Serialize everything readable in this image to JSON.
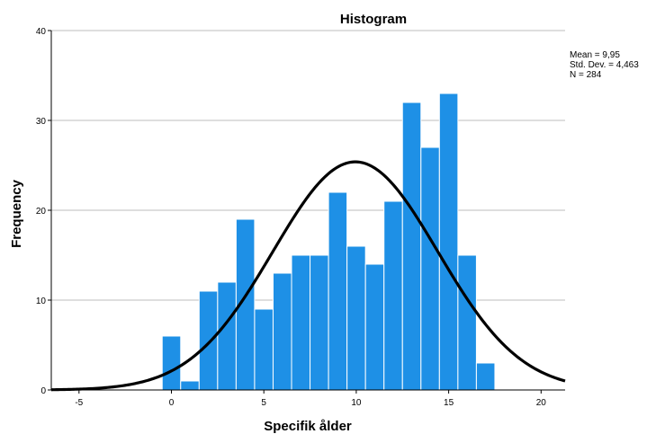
{
  "chart_data": {
    "type": "bar",
    "title": "Histogram",
    "xlabel": "Specifik ålder",
    "ylabel": "Frequency",
    "xlim": [
      -6.5,
      21.3
    ],
    "ylim": [
      0,
      40
    ],
    "x_ticks": [
      "-5",
      "0",
      "5",
      "10",
      "15",
      "20"
    ],
    "y_ticks": [
      "0",
      "10",
      "20",
      "30",
      "40"
    ],
    "grid": "horizontal",
    "bin_width": 1,
    "bins": [
      {
        "x": 0,
        "value": 6
      },
      {
        "x": 1,
        "value": 1
      },
      {
        "x": 2,
        "value": 11
      },
      {
        "x": 3,
        "value": 12
      },
      {
        "x": 4,
        "value": 19
      },
      {
        "x": 5,
        "value": 9
      },
      {
        "x": 6,
        "value": 13
      },
      {
        "x": 7,
        "value": 15
      },
      {
        "x": 8,
        "value": 15
      },
      {
        "x": 9,
        "value": 22
      },
      {
        "x": 10,
        "value": 16
      },
      {
        "x": 11,
        "value": 14
      },
      {
        "x": 12,
        "value": 21
      },
      {
        "x": 13,
        "value": 32
      },
      {
        "x": 14,
        "value": 27
      },
      {
        "x": 15,
        "value": 33
      },
      {
        "x": 16,
        "value": 15
      },
      {
        "x": 17,
        "value": 3
      }
    ],
    "normal_curve": {
      "mean": 9.95,
      "std_dev": 4.463,
      "n": 284
    },
    "stats": [
      "Mean = 9,95",
      "Std. Dev. = 4,463",
      "N = 284"
    ],
    "colors": {
      "bar": "#1e90e6",
      "bar_edge": "#ffffff",
      "curve": "#000000",
      "grid": "#bdbdbd"
    }
  }
}
